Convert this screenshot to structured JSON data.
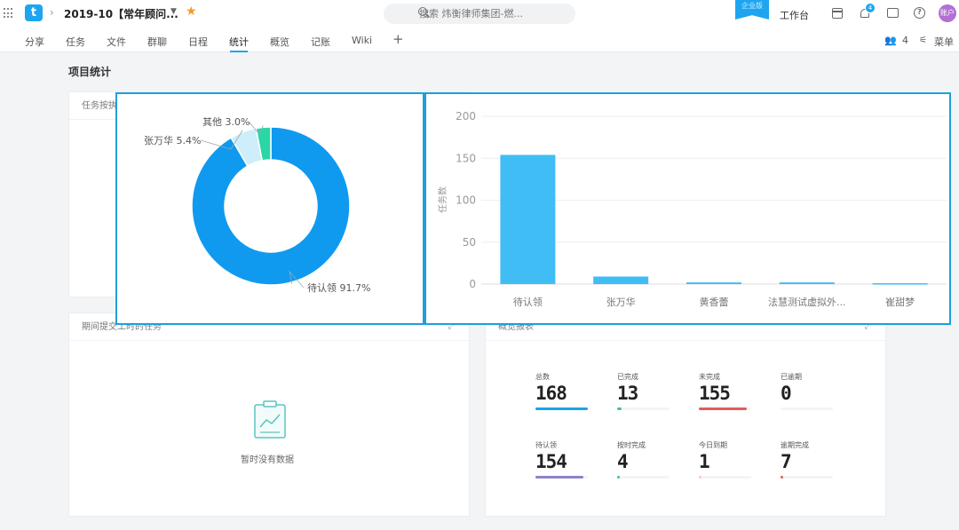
{
  "header": {
    "project_title": "2019-10【常年顾问...",
    "search_placeholder": "搜索 炜衡律师集团-燃...",
    "ribbon_text": "企业版",
    "workbench_label": "工作台",
    "notification_count": "4",
    "avatar_text": "账户",
    "logo_text": "t"
  },
  "tabs": [
    "分享",
    "任务",
    "文件",
    "群聊",
    "日程",
    "统计",
    "概览",
    "记账",
    "Wiki"
  ],
  "active_tab": "统计",
  "toolbar": {
    "member_count": "4",
    "menu_label": "菜单"
  },
  "page": {
    "section_title": "项目统计"
  },
  "cards": {
    "tasks_by_assignee_title": "任务按执行者",
    "period_tasks_title": "期间提交工时的任务",
    "overview_title": "概览报表",
    "empty_text": "暂时没有数据"
  },
  "overview": {
    "items": [
      {
        "label": "总数",
        "value": "168",
        "bar_color": "#1aa3ea",
        "fill": 1.0
      },
      {
        "label": "已完成",
        "value": "13",
        "bar_color": "#4cc38a",
        "fill": 0.08
      },
      {
        "label": "未完成",
        "value": "155",
        "bar_color": "#e35b5b",
        "fill": 0.92
      },
      {
        "label": "已逾期",
        "value": "0",
        "bar_color": "#f7c8c8",
        "fill": 0.0
      },
      {
        "label": "待认领",
        "value": "154",
        "bar_color": "#8f82c9",
        "fill": 0.92
      },
      {
        "label": "按时完成",
        "value": "4",
        "bar_color": "#4cc38a",
        "fill": 0.02
      },
      {
        "label": "今日到期",
        "value": "1",
        "bar_color": "#f7c8c8",
        "fill": 0.01
      },
      {
        "label": "逾期完成",
        "value": "7",
        "bar_color": "#e35b5b",
        "fill": 0.04
      }
    ]
  },
  "chart_data": [
    {
      "type": "pie",
      "title": "",
      "labels": [
        "待认领",
        "张万华",
        "其他"
      ],
      "values": [
        91.7,
        5.4,
        3.0
      ],
      "label_text": [
        "待认领 91.7%",
        "张万华 5.4%",
        "其他 3.0%"
      ],
      "colors": [
        "#0f9af0",
        "#cdeefa",
        "#2ad6a6"
      ]
    },
    {
      "type": "bar",
      "title": "",
      "ylabel": "任务数",
      "xlabel": "",
      "categories": [
        "待认领",
        "张万华",
        "黄香蕾",
        "法慧测试虚拟外...",
        "崔甜梦"
      ],
      "values": [
        154,
        9,
        2,
        2,
        1
      ],
      "ylim": [
        0,
        200
      ],
      "yticks": [
        0,
        50,
        100,
        150,
        200
      ],
      "color": "#40bdf4",
      "grid": true
    }
  ]
}
